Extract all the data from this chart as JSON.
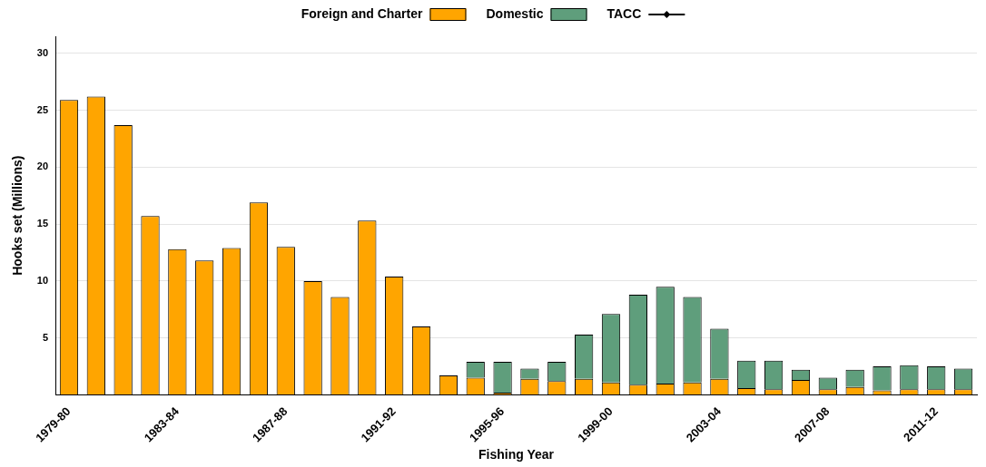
{
  "chart_data": {
    "type": "bar",
    "stacked": true,
    "xlabel": "Fishing Year",
    "ylabel": "Hooks set (Millions)",
    "categories": [
      "1979-80",
      null,
      null,
      null,
      "1983-84",
      null,
      null,
      null,
      "1987-88",
      null,
      null,
      null,
      "1991-92",
      null,
      null,
      null,
      "1995-96",
      null,
      null,
      null,
      "1999-00",
      null,
      null,
      null,
      "2003-04",
      null,
      null,
      null,
      "2007-08",
      null,
      null,
      null,
      "2011-12",
      null
    ],
    "series": [
      {
        "name": "Foreign and Charter",
        "color": "#ffa500",
        "values": [
          25.9,
          26.2,
          23.7,
          15.7,
          12.8,
          11.8,
          12.9,
          16.9,
          13.0,
          10.0,
          8.6,
          15.3,
          10.4,
          6.0,
          1.7,
          1.5,
          0.2,
          1.4,
          1.2,
          1.4,
          1.1,
          0.9,
          1.0,
          1.1,
          1.4,
          0.6,
          0.5,
          1.3,
          0.5,
          0.7,
          0.4,
          0.5,
          0.5,
          0.5
        ]
      },
      {
        "name": "Domestic",
        "color": "#5f9e7c",
        "values": [
          null,
          null,
          null,
          null,
          null,
          null,
          null,
          null,
          null,
          null,
          null,
          null,
          null,
          null,
          null,
          1.4,
          2.7,
          0.9,
          1.7,
          3.9,
          6.0,
          7.9,
          8.5,
          7.5,
          4.4,
          2.4,
          2.5,
          0.9,
          1.0,
          1.5,
          2.1,
          2.1,
          2.0,
          1.8
        ]
      },
      {
        "name": "TACC",
        "type": "line",
        "color": "#000000",
        "marker": "diamond",
        "values": [
          null,
          null,
          null,
          null,
          null,
          null,
          null,
          null,
          null,
          null,
          null,
          null,
          null,
          null,
          null,
          null,
          null,
          null,
          null,
          null,
          null,
          null,
          null,
          null,
          null,
          null,
          null,
          null,
          null,
          null,
          null,
          null,
          null,
          null
        ]
      }
    ],
    "ylim": [
      0,
      31.5
    ],
    "yticks": [
      {
        "value": 0,
        "label": null
      },
      5,
      10,
      15,
      20,
      25,
      30
    ],
    "grid": "y",
    "legend": "top"
  }
}
